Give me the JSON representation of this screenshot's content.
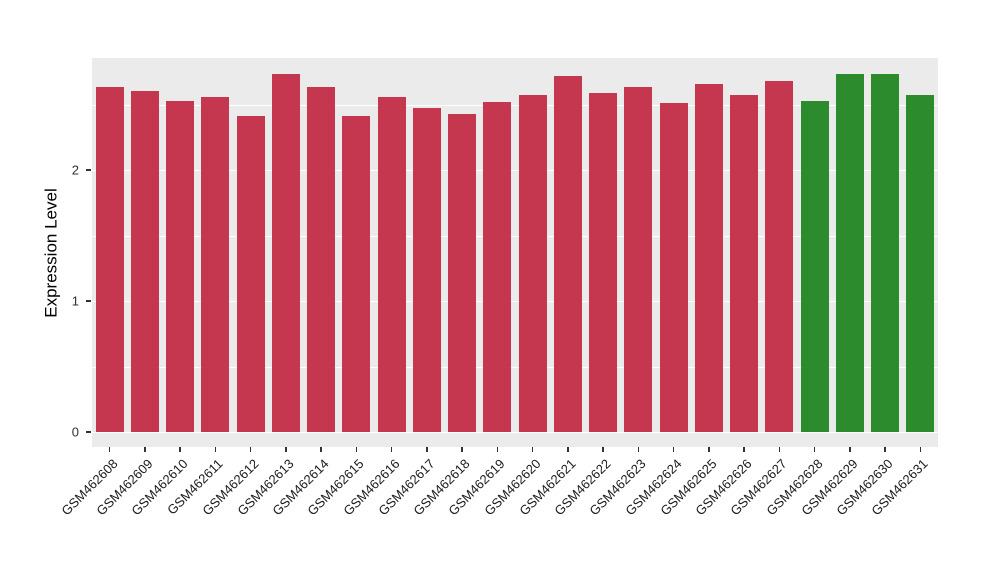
{
  "chart_data": {
    "type": "bar",
    "title": "",
    "xlabel": "",
    "ylabel": "Expression Level",
    "categories": [
      "GSM462608",
      "GSM462609",
      "GSM462610",
      "GSM462611",
      "GSM462612",
      "GSM462613",
      "GSM462614",
      "GSM462615",
      "GSM462616",
      "GSM462617",
      "GSM462618",
      "GSM462619",
      "GSM462620",
      "GSM462621",
      "GSM462622",
      "GSM462623",
      "GSM462624",
      "GSM462625",
      "GSM462626",
      "GSM462627",
      "GSM462628",
      "GSM462629",
      "GSM462630",
      "GSM462631"
    ],
    "values": [
      2.63,
      2.6,
      2.53,
      2.56,
      2.41,
      2.73,
      2.63,
      2.41,
      2.56,
      2.47,
      2.43,
      2.52,
      2.57,
      2.72,
      2.59,
      2.63,
      2.51,
      2.66,
      2.57,
      2.68,
      2.53,
      2.73,
      2.73,
      2.57
    ],
    "bar_colors": [
      "#C5374F",
      "#C5374F",
      "#C5374F",
      "#C5374F",
      "#C5374F",
      "#C5374F",
      "#C5374F",
      "#C5374F",
      "#C5374F",
      "#C5374F",
      "#C5374F",
      "#C5374F",
      "#C5374F",
      "#C5374F",
      "#C5374F",
      "#C5374F",
      "#C5374F",
      "#C5374F",
      "#C5374F",
      "#C5374F",
      "#2C8B2C",
      "#2C8B2C",
      "#2C8B2C",
      "#2C8B2C"
    ],
    "group_colors": {
      "red_group": "#C5374F",
      "green_group": "#2C8B2C"
    },
    "yticks": [
      0,
      1,
      2
    ],
    "ytick_labels": [
      "0",
      "1",
      "2"
    ],
    "minor_yticks": [
      0.5,
      1.5,
      2.5
    ],
    "ylim": [
      -0.11,
      2.86
    ],
    "grid": true,
    "legend": "none",
    "panel_bg": "#EBEBEB",
    "grid_color": "#FFFFFF"
  }
}
